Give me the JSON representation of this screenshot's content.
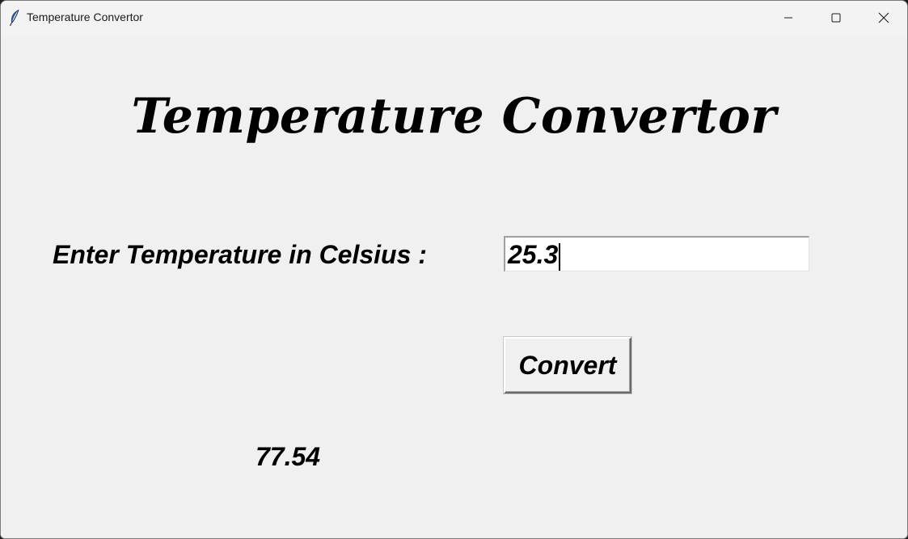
{
  "window": {
    "title": "Temperature Convertor",
    "app_icon": "feather-icon",
    "controls": {
      "minimize_icon": "minimize-icon",
      "maximize_icon": "maximize-icon",
      "close_icon": "close-icon"
    }
  },
  "main": {
    "heading": "Temperature Convertor",
    "input_label": "Enter Temperature in Celsius :",
    "input_value": "25.3",
    "convert_label": "Convert",
    "result": "77.54"
  },
  "colors": {
    "background": "#f0f0f0",
    "titlebar": "#f3f3f3",
    "text": "#000000",
    "entry_bg": "#ffffff"
  }
}
